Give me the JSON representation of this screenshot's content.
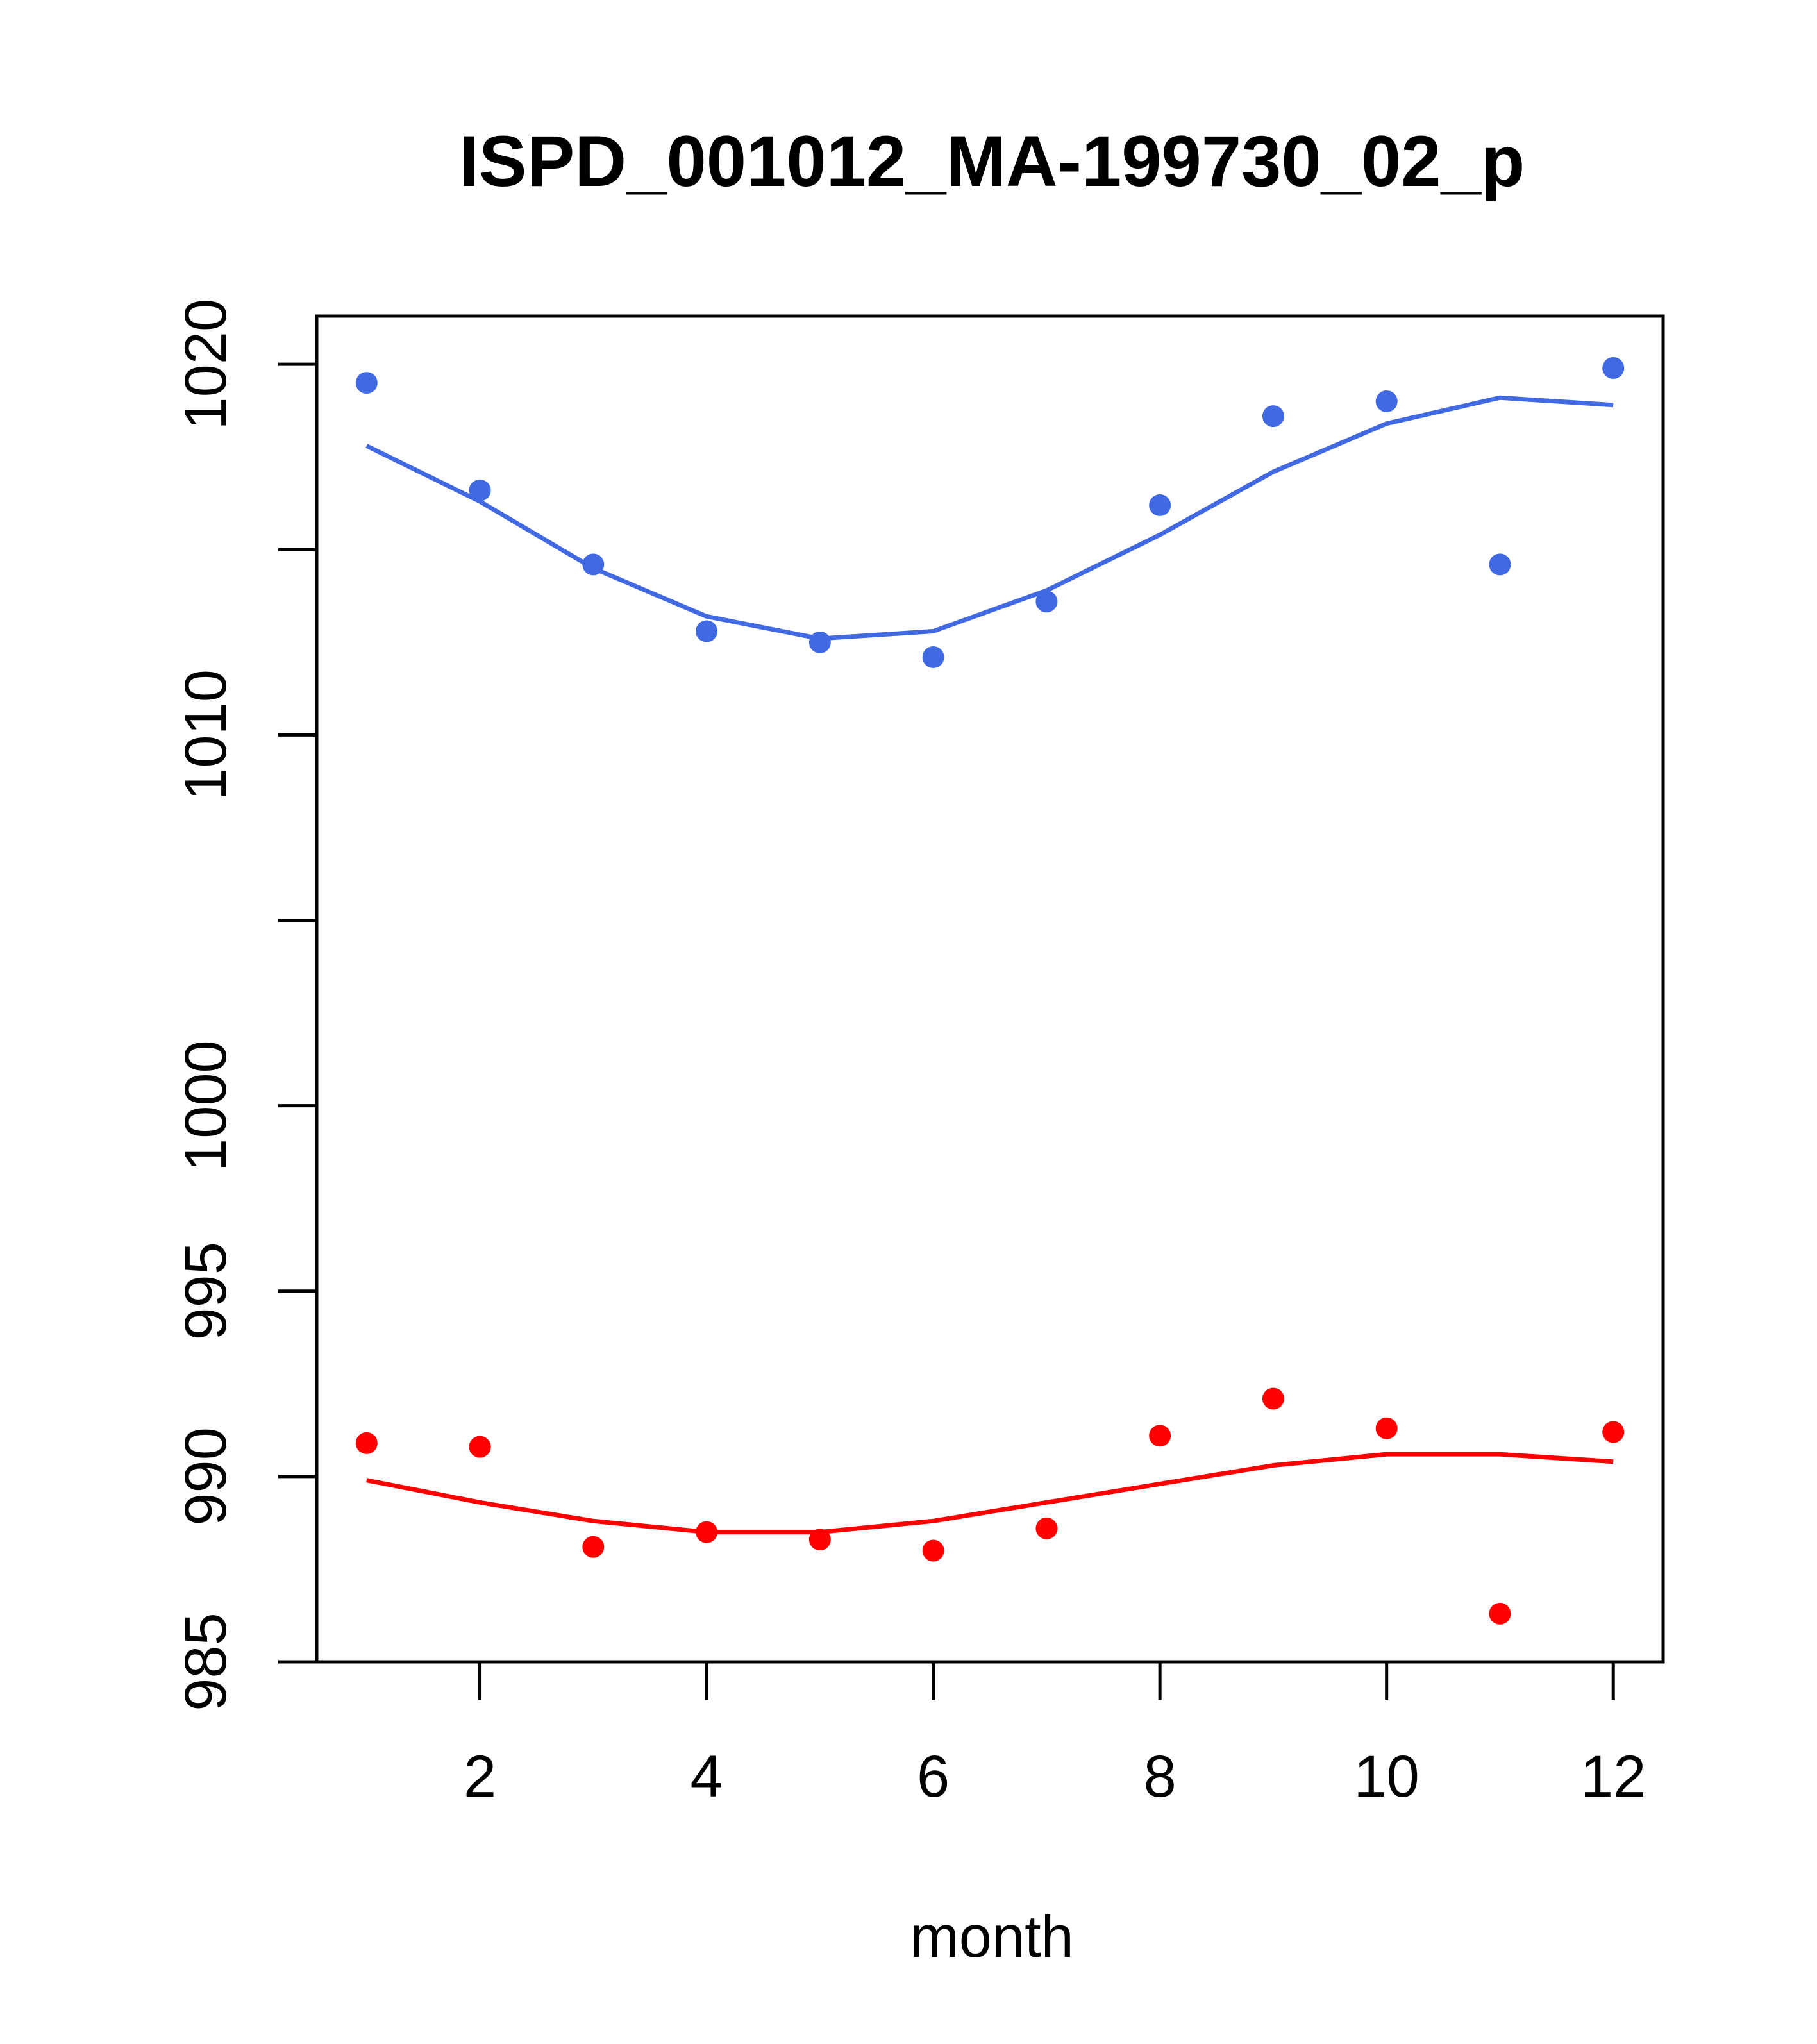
{
  "chart_data": {
    "type": "scatter",
    "title": "ISPD_001012_MA-199730_02_p",
    "xlabel": "month",
    "ylabel": "",
    "xlim": [
      0.56,
      12.44
    ],
    "ylim": [
      985,
      1021.3
    ],
    "x_ticks": [
      2,
      4,
      6,
      8,
      10,
      12
    ],
    "x_tick_labels": [
      "2",
      "4",
      "6",
      "8",
      "10",
      "12"
    ],
    "y_ticks": [
      985,
      990,
      995,
      1000,
      1005,
      1010,
      1015,
      1020
    ],
    "y_tick_labels": [
      "985",
      "990",
      "995",
      "1000",
      "",
      "1010",
      "",
      "1020"
    ],
    "grid": false,
    "legend": "none",
    "series": [
      {
        "color": "#4169e1",
        "points_x": [
          1,
          2,
          3,
          4,
          5,
          6,
          7,
          8,
          9,
          10,
          11,
          12
        ],
        "points_y": [
          1019.5,
          1016.6,
          1014.6,
          1012.8,
          1012.5,
          1012.1,
          1013.6,
          1016.2,
          1018.6,
          1019.0,
          1014.6,
          1019.9
        ],
        "line_x": [
          1,
          2,
          3,
          4,
          5,
          6,
          7,
          8,
          9,
          10,
          11,
          12
        ],
        "line_y": [
          1017.8,
          1016.3,
          1014.5,
          1013.2,
          1012.6,
          1012.8,
          1013.9,
          1015.4,
          1017.1,
          1018.4,
          1019.1,
          1018.9
        ]
      },
      {
        "color": "#ff0000",
        "points_x": [
          1,
          2,
          3,
          4,
          5,
          6,
          7,
          8,
          9,
          10,
          11,
          12
        ],
        "points_y": [
          990.9,
          990.8,
          988.1,
          988.5,
          988.3,
          988.0,
          988.6,
          991.1,
          992.1,
          991.3,
          986.3,
          991.2
        ],
        "line_x": [
          1,
          2,
          3,
          4,
          5,
          6,
          7,
          8,
          9,
          10,
          11,
          12
        ],
        "line_y": [
          989.9,
          989.3,
          988.8,
          988.5,
          988.5,
          988.8,
          989.3,
          989.8,
          990.3,
          990.6,
          990.6,
          990.4
        ]
      }
    ]
  }
}
